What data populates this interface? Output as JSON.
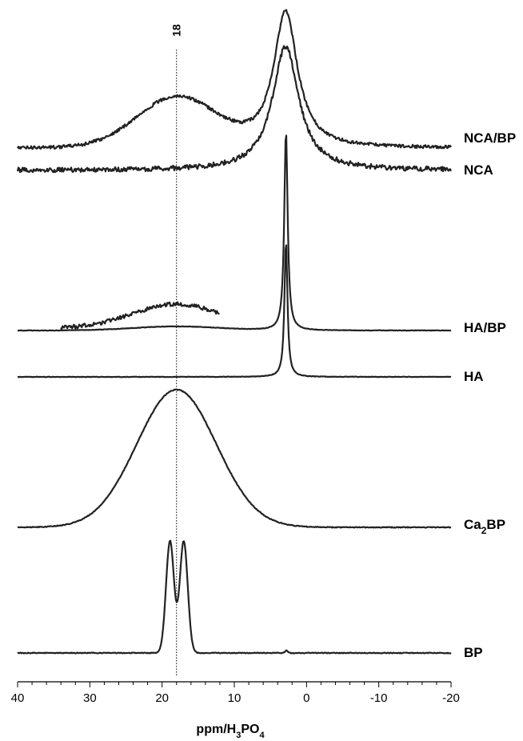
{
  "chart_data": {
    "type": "line",
    "title": "",
    "xlabel_main": "ppm/H",
    "xlabel_sub1": "3",
    "xlabel_mid": "PO",
    "xlabel_sub2": "4",
    "ylabel": "",
    "xlim": [
      40,
      -20
    ],
    "x_reversed": true,
    "x_ticks": [
      40,
      30,
      20,
      10,
      0,
      -10,
      -20
    ],
    "x_tick_labels": [
      "40",
      "30",
      "20",
      "10",
      "0",
      "-10",
      "-20"
    ],
    "grid": false,
    "legend": "none",
    "reference_line": {
      "x": 18,
      "label": "18",
      "style": "dotted"
    },
    "series": [
      {
        "name": "NCA/BP",
        "label_main": "NCA/BP",
        "baseline": 0,
        "noise": 2,
        "peaks": [
          {
            "center": 2.9,
            "width": 2.0,
            "height": 170,
            "shape": "lorentz"
          },
          {
            "center": 18,
            "width": 5.5,
            "height": 62,
            "shape": "gauss"
          }
        ]
      },
      {
        "name": "NCA",
        "label_main": "NCA",
        "baseline": 0,
        "noise": 3,
        "peaks": [
          {
            "center": 2.9,
            "width": 2.2,
            "height": 155,
            "shape": "lorentz"
          }
        ]
      },
      {
        "name": "HA/BP",
        "label_main": "HA/BP",
        "baseline": 0,
        "noise": 0.3,
        "peaks": [
          {
            "center": 2.85,
            "width": 0.28,
            "height": 250,
            "shape": "lorentz"
          },
          {
            "center": 18,
            "width": 6,
            "height": 5,
            "shape": "gauss"
          }
        ],
        "inset": {
          "x_from": 34,
          "x_to": 12,
          "offset": 3,
          "scale": 6,
          "noise": 2.5
        }
      },
      {
        "name": "HA",
        "label_main": "HA",
        "baseline": 0,
        "noise": 0.3,
        "peaks": [
          {
            "center": 2.85,
            "width": 0.25,
            "height": 170,
            "shape": "lorentz"
          }
        ]
      },
      {
        "name": "Ca2BP",
        "label_main": "Ca",
        "label_sub": "2",
        "label_tail": "BP",
        "baseline": 0,
        "noise": 0.5,
        "peaks": [
          {
            "center": 18,
            "width": 5.5,
            "height": 172,
            "shape": "gauss"
          }
        ]
      },
      {
        "name": "BP",
        "label_main": "BP",
        "baseline": 0,
        "noise": 0.5,
        "peaks": [
          {
            "center": 18.9,
            "width": 0.55,
            "height": 140,
            "shape": "gauss"
          },
          {
            "center": 17.0,
            "width": 0.55,
            "height": 140,
            "shape": "gauss"
          },
          {
            "center": 2.8,
            "width": 0.2,
            "height": 3,
            "shape": "gauss"
          }
        ]
      }
    ]
  }
}
